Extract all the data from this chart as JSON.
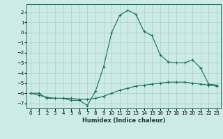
{
  "xlabel": "Humidex (Indice chaleur)",
  "background_color": "#cceae6",
  "grid_color": "#aad4cf",
  "line_color": "#1a6b5a",
  "xlim": [
    -0.5,
    23.5
  ],
  "ylim": [
    -7.5,
    2.8
  ],
  "yticks": [
    2,
    1,
    0,
    -1,
    -2,
    -3,
    -4,
    -5,
    -6,
    -7
  ],
  "xticks": [
    0,
    1,
    2,
    3,
    4,
    5,
    6,
    7,
    8,
    9,
    10,
    11,
    12,
    13,
    14,
    15,
    16,
    17,
    18,
    19,
    20,
    21,
    22,
    23
  ],
  "series1_x": [
    0,
    1,
    2,
    3,
    4,
    5,
    6,
    7,
    8,
    9,
    10,
    11,
    12,
    13,
    14,
    15,
    16,
    17,
    18,
    19,
    20,
    21,
    22,
    23
  ],
  "series1_y": [
    -6.0,
    -6.0,
    -6.5,
    -6.5,
    -6.5,
    -6.7,
    -6.7,
    -7.2,
    -5.8,
    -3.4,
    -0.0,
    1.7,
    2.2,
    1.8,
    0.1,
    -0.3,
    -2.2,
    -2.9,
    -3.0,
    -3.0,
    -2.7,
    -3.5,
    -5.1,
    -5.2
  ],
  "series2_x": [
    0,
    1,
    2,
    3,
    4,
    5,
    6,
    7,
    8,
    9,
    10,
    11,
    12,
    13,
    14,
    15,
    16,
    17,
    18,
    19,
    20,
    21,
    22,
    23
  ],
  "series2_y": [
    -6.0,
    -6.2,
    -6.4,
    -6.5,
    -6.5,
    -6.5,
    -6.6,
    -6.6,
    -6.5,
    -6.3,
    -6.0,
    -5.7,
    -5.5,
    -5.3,
    -5.2,
    -5.1,
    -5.0,
    -4.9,
    -4.9,
    -4.9,
    -5.0,
    -5.1,
    -5.2,
    -5.3
  ],
  "tick_fontsize": 5.0,
  "xlabel_fontsize": 6.0
}
